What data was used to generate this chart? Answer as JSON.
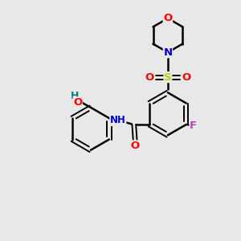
{
  "background_color": "#e8e8e8",
  "bond_color": "#000000",
  "atom_colors": {
    "O": "#ff0000",
    "N": "#0000cc",
    "F": "#bb44bb",
    "S": "#cccc00",
    "HO": "#008080",
    "C": "#000000"
  },
  "figsize": [
    3.0,
    3.0
  ],
  "dpi": 100
}
